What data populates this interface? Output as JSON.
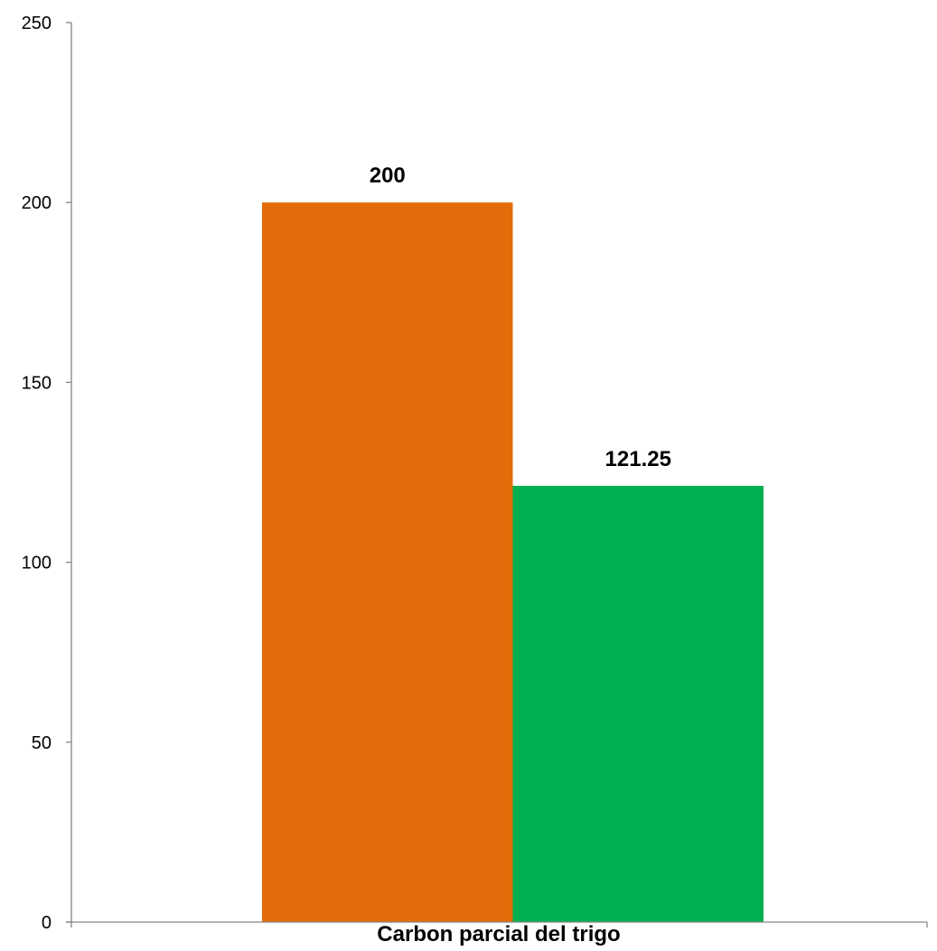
{
  "chart_data": {
    "type": "bar",
    "categories": [
      "Carbon parcial del trigo"
    ],
    "series": [
      {
        "values": [
          200
        ],
        "color": "#E36C0A"
      },
      {
        "values": [
          121.25
        ],
        "color": "#00B050"
      }
    ],
    "data_labels": [
      "200",
      "121.25"
    ],
    "yticks": [
      "0",
      "50",
      "100",
      "150",
      "200",
      "250"
    ],
    "ylim": [
      0,
      250
    ],
    "title": "",
    "xlabel": "",
    "ylabel": "",
    "grid": false,
    "legend": "none"
  }
}
